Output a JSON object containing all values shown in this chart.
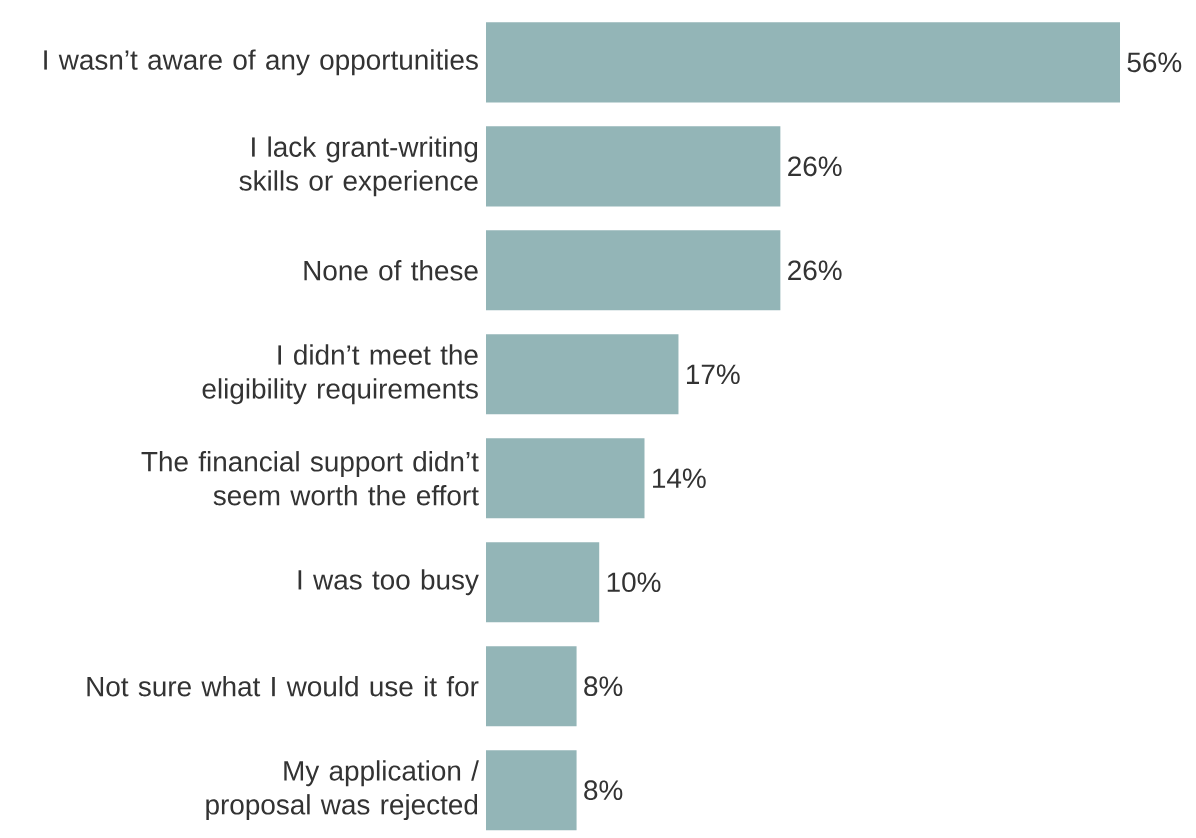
{
  "chart_data": {
    "type": "bar",
    "orientation": "horizontal",
    "color": "#93b5b7",
    "categories": [
      "I wasn’t aware of any opportunities",
      "I lack grant-writing skills or experience",
      "None of these",
      "I didn’t meet the eligibility requirements",
      "The financial support didn’t seem worth the effort",
      "I was too busy",
      "Not sure what I would use it for",
      "My application / proposal was rejected"
    ],
    "values": [
      56,
      26,
      26,
      17,
      14,
      10,
      8,
      8
    ],
    "value_labels": [
      "56%",
      "26%",
      "26%",
      "17%",
      "14%",
      "10%",
      "8%",
      "8%"
    ]
  }
}
